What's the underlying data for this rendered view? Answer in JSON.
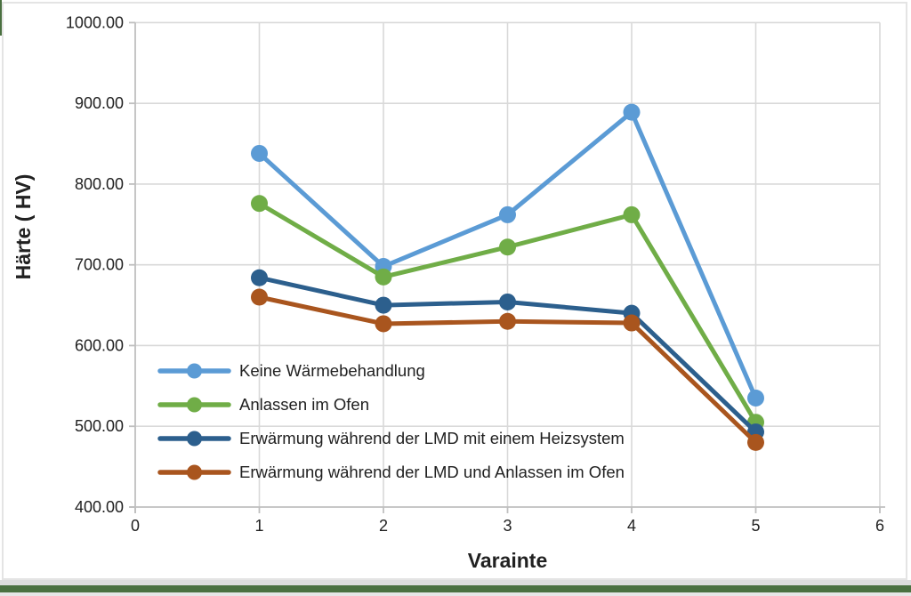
{
  "chart": {
    "title": "",
    "text_color": "#212121",
    "gridline_color": "#d9d9d9",
    "axis_color": "#bfbfbf",
    "background": "#ffffff",
    "accent_border_color": "#4a7040"
  },
  "chart_data": {
    "type": "line",
    "title": "",
    "xlabel": "Varainte",
    "ylabel": "Härte ( HV)",
    "x": [
      1,
      2,
      3,
      4,
      5
    ],
    "x_ticks": [
      0,
      1,
      2,
      3,
      4,
      5,
      6
    ],
    "y_ticks": [
      400,
      500,
      600,
      700,
      800,
      900,
      1000
    ],
    "y_tick_decimals": 2,
    "xlim": [
      0,
      6
    ],
    "ylim": [
      400,
      1000
    ],
    "grid": true,
    "legend_position": "inside-lower-left",
    "marker": "circle",
    "series": [
      {
        "name": "Keine Wärmebehandlung",
        "color": "#5b9bd5",
        "values": [
          838,
          698,
          762,
          889,
          535
        ]
      },
      {
        "name": "Anlassen im Ofen",
        "color": "#70ad47",
        "values": [
          776,
          685,
          722,
          762,
          505
        ]
      },
      {
        "name": "Erwärmung während der LMD mit einem Heizsystem",
        "color": "#2c5f8d",
        "values": [
          684,
          650,
          654,
          640,
          493
        ]
      },
      {
        "name": "Erwärmung während der LMD und Anlassen im Ofen",
        "color": "#a9551e",
        "values": [
          660,
          627,
          630,
          628,
          480
        ]
      }
    ]
  }
}
